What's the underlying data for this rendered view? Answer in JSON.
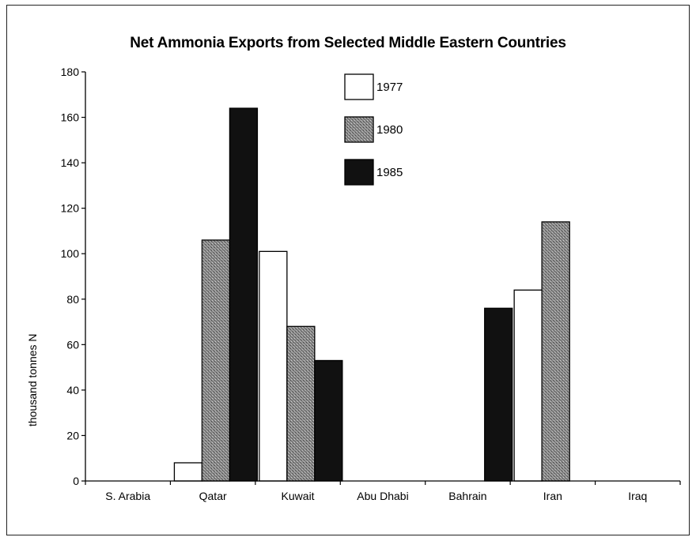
{
  "chart_data": {
    "type": "bar",
    "title": "Net Ammonia Exports from Selected Middle Eastern Countries",
    "xlabel": "",
    "ylabel": "thousand tonnes N",
    "ylim": [
      0,
      180
    ],
    "yticks": [
      0,
      20,
      40,
      60,
      80,
      100,
      120,
      140,
      160,
      180
    ],
    "categories": [
      "S. Arabia",
      "Qatar",
      "Kuwait",
      "Abu Dhabi",
      "Bahrain",
      "Iran",
      "Iraq"
    ],
    "series": [
      {
        "name": "1977",
        "color": "#ffffff",
        "values": [
          0,
          8,
          101,
          0,
          0,
          84,
          0
        ]
      },
      {
        "name": "1980",
        "color": "#8a8a8a",
        "values": [
          0,
          106,
          68,
          0,
          0,
          114,
          0
        ]
      },
      {
        "name": "1985",
        "color": "#111111",
        "values": [
          0,
          164,
          53,
          0,
          76,
          0,
          0
        ]
      }
    ],
    "legend_position": "top-center",
    "grid": false
  }
}
